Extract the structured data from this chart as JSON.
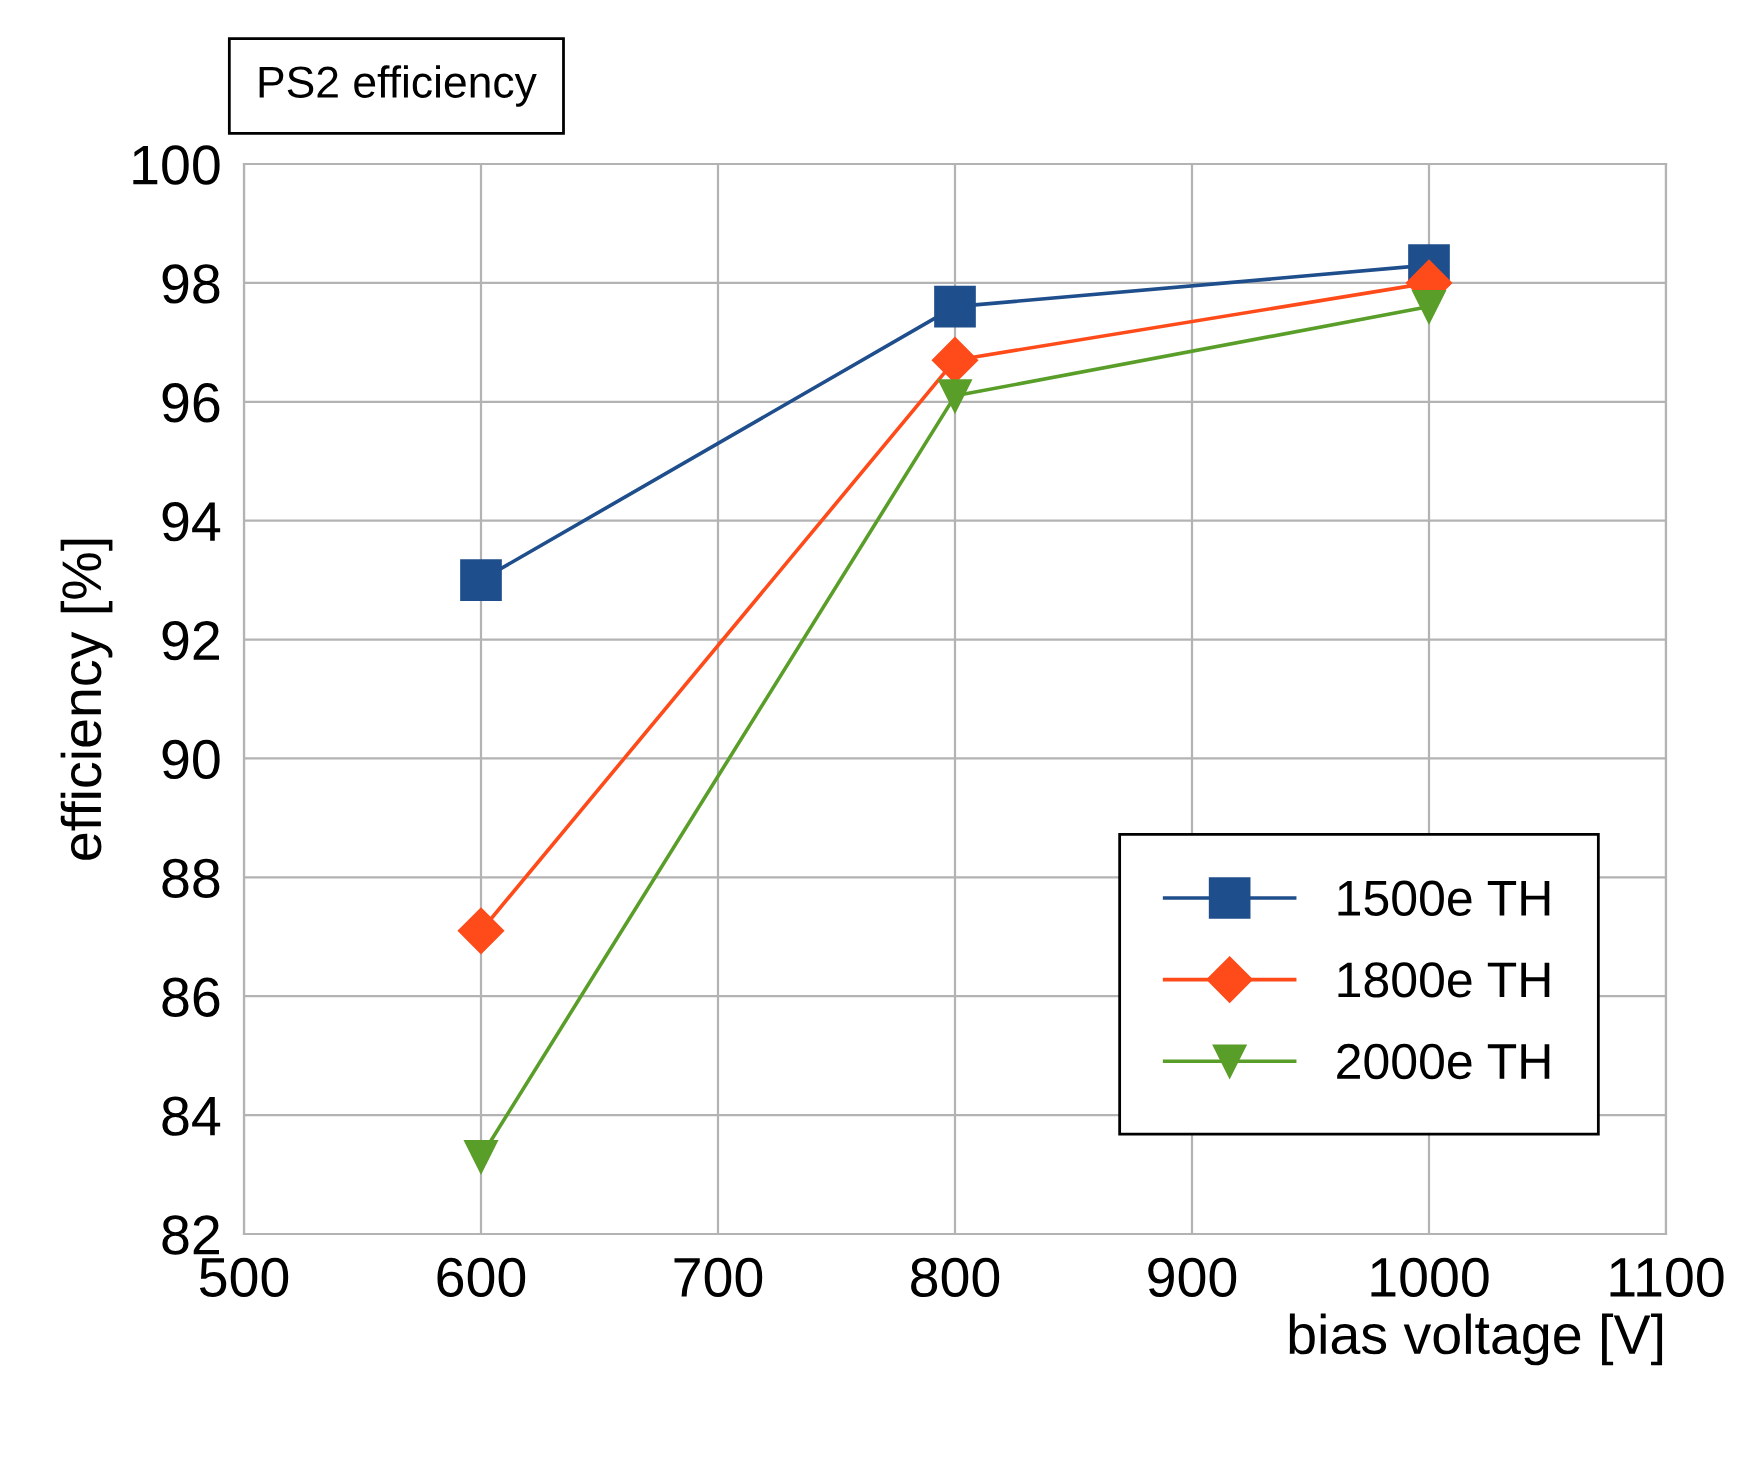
{
  "chart_data": {
    "type": "line",
    "title": "PS2 efficiency",
    "xlabel": "bias voltage [V]",
    "ylabel": "efficiency [%]",
    "x": [
      600,
      800,
      1000
    ],
    "series": [
      {
        "name": "1500e TH",
        "color": "#1f4e8c",
        "marker": "square",
        "values": [
          93.0,
          97.6,
          98.3
        ]
      },
      {
        "name": "1800e TH",
        "color": "#ff4a1a",
        "marker": "diamond",
        "values": [
          87.1,
          96.7,
          98.0
        ]
      },
      {
        "name": "2000e TH",
        "color": "#5a9e2a",
        "marker": "triangle",
        "values": [
          83.3,
          96.1,
          97.6
        ]
      }
    ],
    "xlim": [
      500,
      1100
    ],
    "xticks": [
      500,
      600,
      700,
      800,
      900,
      1000,
      1100
    ],
    "ylim": [
      82,
      100
    ],
    "yticks": [
      82,
      84,
      86,
      88,
      90,
      92,
      94,
      96,
      98,
      100
    ],
    "grid": true,
    "legend": "bottom right",
    "line_style": "solid"
  }
}
